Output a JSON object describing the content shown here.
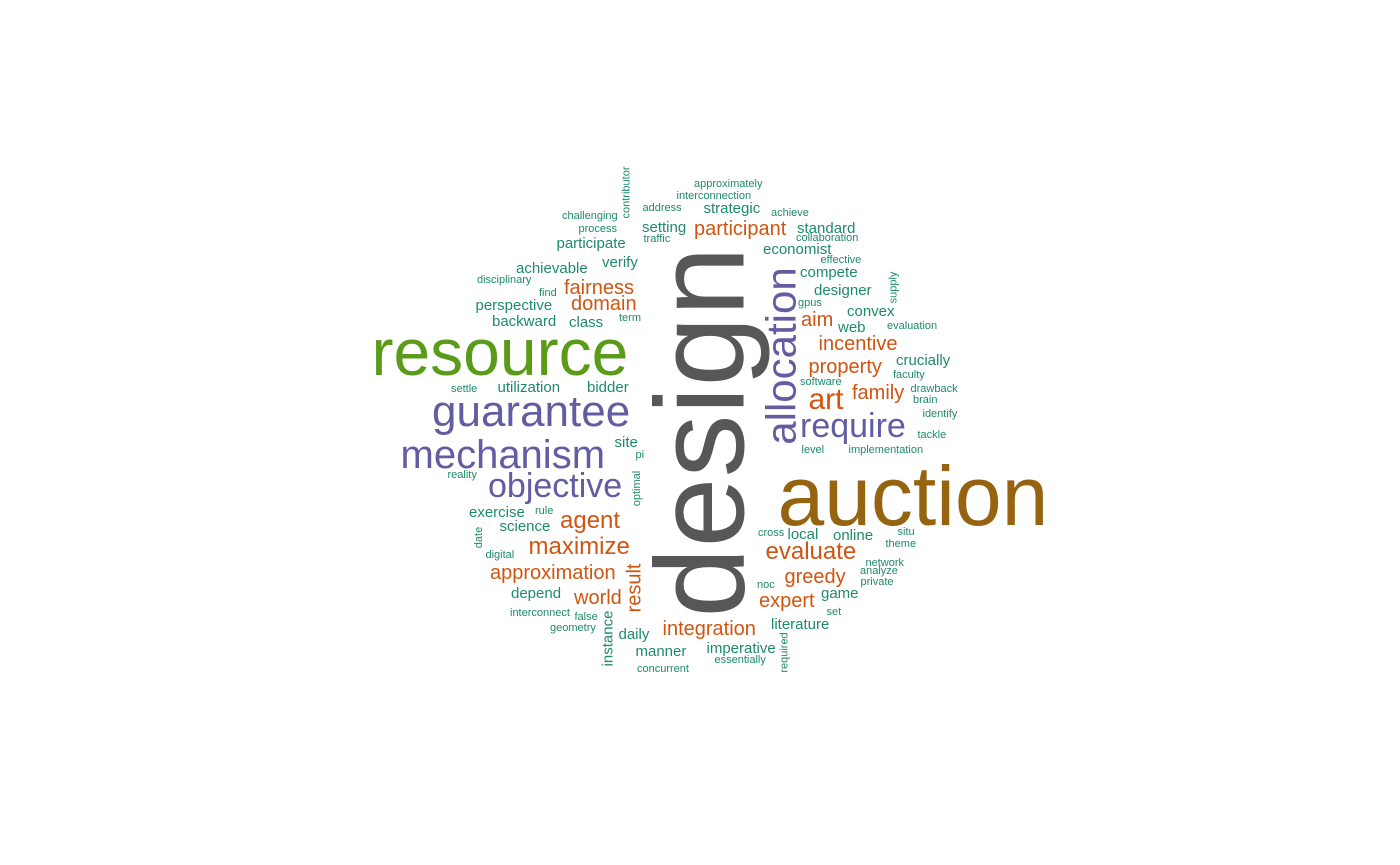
{
  "palette": {
    "dark_grey": "#575757",
    "brown": "#966411",
    "green": "#5a9c19",
    "purple": "#625da3",
    "orange": "#cf5511",
    "teal": "#1e8a6c"
  },
  "words": [
    {
      "text": "design",
      "color": "dark_grey",
      "rotated": true
    },
    {
      "text": "auction",
      "color": "brown",
      "rotated": false
    },
    {
      "text": "resource",
      "color": "green",
      "rotated": false
    },
    {
      "text": "guarantee",
      "color": "purple",
      "rotated": false
    },
    {
      "text": "mechanism",
      "color": "purple",
      "rotated": false
    },
    {
      "text": "allocation",
      "color": "purple",
      "rotated": true
    },
    {
      "text": "objective",
      "color": "purple",
      "rotated": false
    },
    {
      "text": "require",
      "color": "purple",
      "rotated": false
    },
    {
      "text": "art",
      "color": "orange",
      "rotated": false
    },
    {
      "text": "evaluate",
      "color": "orange",
      "rotated": false
    },
    {
      "text": "maximize",
      "color": "orange",
      "rotated": false
    },
    {
      "text": "agent",
      "color": "orange",
      "rotated": false
    },
    {
      "text": "approximation",
      "color": "orange",
      "rotated": false
    },
    {
      "text": "fairness",
      "color": "orange",
      "rotated": false
    },
    {
      "text": "domain",
      "color": "orange",
      "rotated": false
    },
    {
      "text": "participant",
      "color": "orange",
      "rotated": false
    },
    {
      "text": "incentive",
      "color": "orange",
      "rotated": false
    },
    {
      "text": "property",
      "color": "orange",
      "rotated": false
    },
    {
      "text": "family",
      "color": "orange",
      "rotated": false
    },
    {
      "text": "aim",
      "color": "orange",
      "rotated": false
    },
    {
      "text": "greedy",
      "color": "orange",
      "rotated": false
    },
    {
      "text": "expert",
      "color": "orange",
      "rotated": false
    },
    {
      "text": "world",
      "color": "orange",
      "rotated": false
    },
    {
      "text": "integration",
      "color": "orange",
      "rotated": false
    },
    {
      "text": "result",
      "color": "orange",
      "rotated": true
    },
    {
      "text": "strategic",
      "color": "teal",
      "rotated": false
    },
    {
      "text": "setting",
      "color": "teal",
      "rotated": false
    },
    {
      "text": "standard",
      "color": "teal",
      "rotated": false
    },
    {
      "text": "participate",
      "color": "teal",
      "rotated": false
    },
    {
      "text": "economist",
      "color": "teal",
      "rotated": false
    },
    {
      "text": "verify",
      "color": "teal",
      "rotated": false
    },
    {
      "text": "achievable",
      "color": "teal",
      "rotated": false
    },
    {
      "text": "compete",
      "color": "teal",
      "rotated": false
    },
    {
      "text": "designer",
      "color": "teal",
      "rotated": false
    },
    {
      "text": "perspective",
      "color": "teal",
      "rotated": false
    },
    {
      "text": "backward",
      "color": "teal",
      "rotated": false
    },
    {
      "text": "class",
      "color": "teal",
      "rotated": false
    },
    {
      "text": "convex",
      "color": "teal",
      "rotated": false
    },
    {
      "text": "web",
      "color": "teal",
      "rotated": false
    },
    {
      "text": "crucially",
      "color": "teal",
      "rotated": false
    },
    {
      "text": "utilization",
      "color": "teal",
      "rotated": false
    },
    {
      "text": "bidder",
      "color": "teal",
      "rotated": false
    },
    {
      "text": "site",
      "color": "teal",
      "rotated": false
    },
    {
      "text": "exercise",
      "color": "teal",
      "rotated": false
    },
    {
      "text": "science",
      "color": "teal",
      "rotated": false
    },
    {
      "text": "local",
      "color": "teal",
      "rotated": false
    },
    {
      "text": "online",
      "color": "teal",
      "rotated": false
    },
    {
      "text": "depend",
      "color": "teal",
      "rotated": false
    },
    {
      "text": "game",
      "color": "teal",
      "rotated": false
    },
    {
      "text": "literature",
      "color": "teal",
      "rotated": false
    },
    {
      "text": "daily",
      "color": "teal",
      "rotated": false
    },
    {
      "text": "manner",
      "color": "teal",
      "rotated": false
    },
    {
      "text": "imperative",
      "color": "teal",
      "rotated": false
    },
    {
      "text": "instance",
      "color": "teal",
      "rotated": true
    },
    {
      "text": "approximately",
      "color": "teal",
      "rotated": false
    },
    {
      "text": "interconnection",
      "color": "teal",
      "rotated": false
    },
    {
      "text": "address",
      "color": "teal",
      "rotated": false
    },
    {
      "text": "achieve",
      "color": "teal",
      "rotated": false
    },
    {
      "text": "challenging",
      "color": "teal",
      "rotated": false
    },
    {
      "text": "contributor",
      "color": "teal",
      "rotated": true
    },
    {
      "text": "process",
      "color": "teal",
      "rotated": false
    },
    {
      "text": "traffic",
      "color": "teal",
      "rotated": false
    },
    {
      "text": "collaboration",
      "color": "teal",
      "rotated": false
    },
    {
      "text": "effective",
      "color": "teal",
      "rotated": false
    },
    {
      "text": "disciplinary",
      "color": "teal",
      "rotated": false
    },
    {
      "text": "find",
      "color": "teal",
      "rotated": false
    },
    {
      "text": "supply",
      "color": "teal",
      "rotated": true
    },
    {
      "text": "gpus",
      "color": "teal",
      "rotated": false
    },
    {
      "text": "term",
      "color": "teal",
      "rotated": false
    },
    {
      "text": "evaluation",
      "color": "teal",
      "rotated": false
    },
    {
      "text": "settle",
      "color": "teal",
      "rotated": false
    },
    {
      "text": "software",
      "color": "teal",
      "rotated": false
    },
    {
      "text": "faculty",
      "color": "teal",
      "rotated": false
    },
    {
      "text": "drawback",
      "color": "teal",
      "rotated": false
    },
    {
      "text": "brain",
      "color": "teal",
      "rotated": false
    },
    {
      "text": "identify",
      "color": "teal",
      "rotated": false
    },
    {
      "text": "tackle",
      "color": "teal",
      "rotated": false
    },
    {
      "text": "level",
      "color": "teal",
      "rotated": false
    },
    {
      "text": "implementation",
      "color": "teal",
      "rotated": false
    },
    {
      "text": "pi",
      "color": "teal",
      "rotated": false
    },
    {
      "text": "reality",
      "color": "teal",
      "rotated": false
    },
    {
      "text": "optimal",
      "color": "teal",
      "rotated": true
    },
    {
      "text": "rule",
      "color": "teal",
      "rotated": false
    },
    {
      "text": "date",
      "color": "teal",
      "rotated": true
    },
    {
      "text": "digital",
      "color": "teal",
      "rotated": false
    },
    {
      "text": "cross",
      "color": "teal",
      "rotated": false
    },
    {
      "text": "situ",
      "color": "teal",
      "rotated": false
    },
    {
      "text": "theme",
      "color": "teal",
      "rotated": false
    },
    {
      "text": "network",
      "color": "teal",
      "rotated": false
    },
    {
      "text": "analyze",
      "color": "teal",
      "rotated": false
    },
    {
      "text": "private",
      "color": "teal",
      "rotated": false
    },
    {
      "text": "noc",
      "color": "teal",
      "rotated": false
    },
    {
      "text": "set",
      "color": "teal",
      "rotated": false
    },
    {
      "text": "interconnect",
      "color": "teal",
      "rotated": false
    },
    {
      "text": "false",
      "color": "teal",
      "rotated": false
    },
    {
      "text": "geometry",
      "color": "teal",
      "rotated": false
    },
    {
      "text": "essentially",
      "color": "teal",
      "rotated": false
    },
    {
      "text": "required",
      "color": "teal",
      "rotated": true
    },
    {
      "text": "concurrent",
      "color": "teal",
      "rotated": false
    }
  ]
}
